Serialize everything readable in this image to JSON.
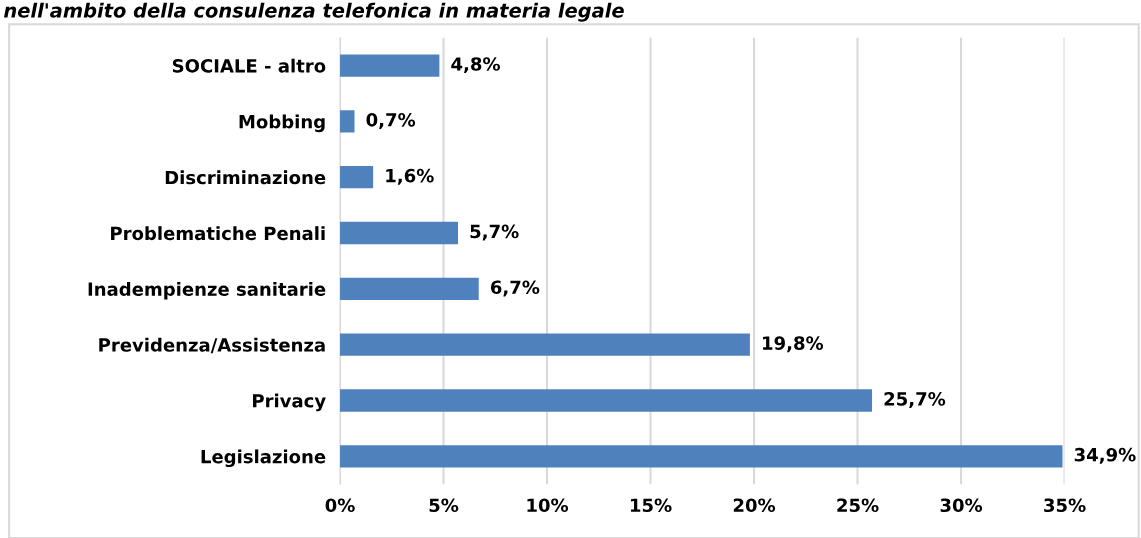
{
  "chart_data": {
    "type": "bar",
    "orientation": "horizontal",
    "title": "nell'ambito della consulenza telefonica in materia legale",
    "categories": [
      "SOCIALE - altro",
      "Mobbing",
      "Discriminazione",
      "Problematiche Penali",
      "Inadempienze sanitarie",
      "Previdenza/Assistenza",
      "Privacy",
      "Legislazione"
    ],
    "values": [
      4.8,
      0.7,
      1.6,
      5.7,
      6.7,
      19.8,
      25.7,
      34.9
    ],
    "value_labels": [
      "4,8%",
      "0,7%",
      "1,6%",
      "5,7%",
      "6,7%",
      "19,8%",
      "25,7%",
      "34,9%"
    ],
    "color": "#4f81bd",
    "xlim": [
      0,
      35
    ],
    "xticks": [
      {
        "value": 0,
        "label": "0%"
      },
      {
        "value": 5,
        "label": "5%"
      },
      {
        "value": 10,
        "label": "10%"
      },
      {
        "value": 15,
        "label": "15%"
      },
      {
        "value": 20,
        "label": "20%"
      },
      {
        "value": 25,
        "label": "25%"
      },
      {
        "value": 30,
        "label": "30%"
      },
      {
        "value": 35,
        "label": "35%"
      }
    ],
    "grid": "x",
    "legend": false
  }
}
